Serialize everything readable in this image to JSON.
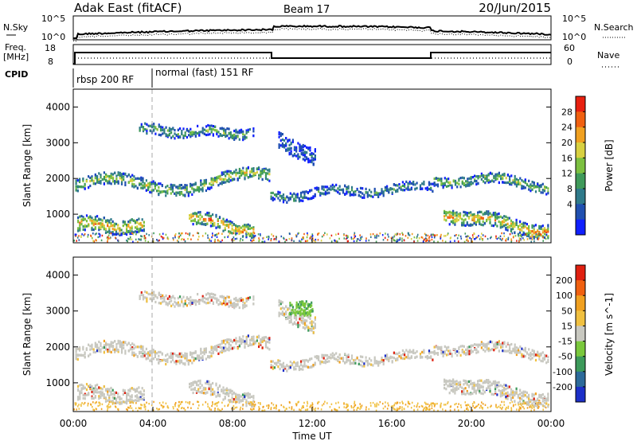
{
  "header": {
    "station": "Adak East (fitACF)",
    "beam": "Beam 17",
    "date": "20/Jun/2015"
  },
  "top_panel": {
    "left_label": "N.Sky",
    "left_ticks": [
      "10^5",
      "10^0"
    ],
    "right_label": "N.Search",
    "right_ticks": [
      "10^5",
      "10^0"
    ]
  },
  "freq_panel": {
    "left_label_1": "Freq.",
    "left_label_2": "[MHz]",
    "left_ticks": [
      "18",
      "8"
    ],
    "right_label": "Nave",
    "right_ticks": [
      "60",
      "0"
    ]
  },
  "cpid": {
    "label": "CPID",
    "segments": [
      {
        "name": "rbsp 200 RF",
        "start_hour": 0
      },
      {
        "name": "normal (fast) 151 RF",
        "start_hour": 4
      }
    ]
  },
  "chart_data": [
    {
      "type": "heatmap",
      "panel": "power",
      "ylabel": "Slant Range [km]",
      "xlabel": "Time UT",
      "xlim": [
        0,
        24
      ],
      "ylim": [
        200,
        4500
      ],
      "x_ticks": [
        "00:00",
        "04:00",
        "08:00",
        "12:00",
        "16:00",
        "20:00",
        "00:00"
      ],
      "y_ticks": [
        1000,
        2000,
        3000,
        4000
      ],
      "colorbar_label": "Power [dB]",
      "colorbar_ticks": [
        "4",
        "8",
        "12",
        "16",
        "20",
        "24",
        "28"
      ],
      "colorbar_colors": [
        "#1020ff",
        "#2050b0",
        "#2f7a8a",
        "#3f9a5a",
        "#7cc040",
        "#d8d040",
        "#f0a020",
        "#f06010",
        "#e82010"
      ],
      "bands": [
        {
          "t0": 0.1,
          "t1": 9.9,
          "center_start": 1800,
          "center_end": 2000,
          "width": 260,
          "amp": 220,
          "period": 7,
          "level": 0.55
        },
        {
          "t0": 9.9,
          "t1": 18.1,
          "center_start": 1550,
          "center_end": 1800,
          "width": 200,
          "amp": 90,
          "period": 4,
          "level": 0.35
        },
        {
          "t0": 18.1,
          "t1": 23.9,
          "center_start": 2050,
          "center_end": 1850,
          "width": 220,
          "amp": 120,
          "period": 5,
          "level": 0.5
        },
        {
          "t0": 3.3,
          "t1": 9.1,
          "center_start": 3380,
          "center_end": 3300,
          "width": 220,
          "amp": 60,
          "period": 3,
          "level": 0.45
        },
        {
          "t0": 0.2,
          "t1": 3.6,
          "center_start": 750,
          "center_end": 700,
          "width": 320,
          "amp": 60,
          "period": 3,
          "level": 0.75
        },
        {
          "t0": 5.8,
          "t1": 9.1,
          "center_start": 950,
          "center_end": 550,
          "width": 280,
          "amp": 60,
          "period": 3,
          "level": 0.8
        },
        {
          "t0": 18.6,
          "t1": 23.9,
          "center_start": 1050,
          "center_end": 550,
          "width": 300,
          "amp": 80,
          "period": 4,
          "level": 0.75
        },
        {
          "t0": 10.3,
          "t1": 12.2,
          "center_start": 3100,
          "center_end": 2600,
          "width": 350,
          "amp": 40,
          "period": 3,
          "level": 0.25
        }
      ]
    },
    {
      "type": "heatmap",
      "panel": "velocity",
      "ylabel": "Slant Range [km]",
      "xlabel": "Time UT",
      "xlim": [
        0,
        24
      ],
      "ylim": [
        200,
        4500
      ],
      "x_ticks": [
        "00:00",
        "04:00",
        "08:00",
        "12:00",
        "16:00",
        "20:00",
        "00:00"
      ],
      "y_ticks": [
        1000,
        2000,
        3000,
        4000
      ],
      "colorbar_label": "Velocity [m s^-1]",
      "colorbar_ticks": [
        "200",
        "100",
        "50",
        "15",
        "-15",
        "-50",
        "-100",
        "-200"
      ],
      "colorbar_colors": [
        "#1c2fc8",
        "#2c6a9a",
        "#3c9a5a",
        "#7ac83c",
        "#c8c8c0",
        "#f0c040",
        "#f0a020",
        "#f06010",
        "#e02010"
      ],
      "green_patch": {
        "t0": 10.8,
        "t1": 12.0,
        "r0": 2900,
        "r1": 3300
      }
    }
  ]
}
